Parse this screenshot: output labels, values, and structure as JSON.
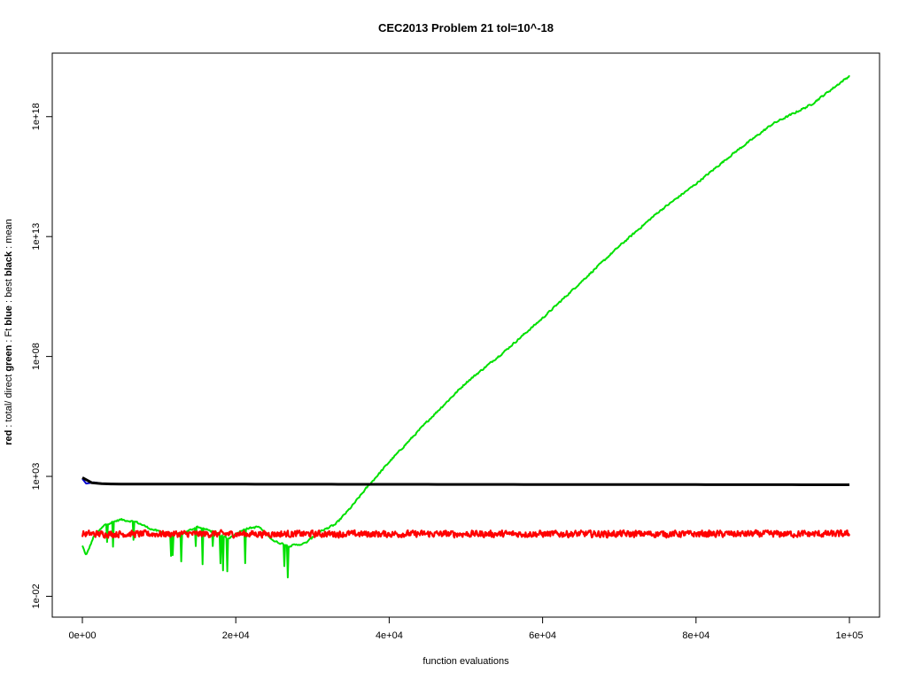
{
  "chart_data": {
    "type": "line",
    "title": "CEC2013 Problem  21  tol=10^-18",
    "xlabel": "function evaluations",
    "ylabel_parts": [
      {
        "text": "red",
        "bold": true
      },
      {
        "text": " : total/ direct ",
        "bold": false
      },
      {
        "text": "green",
        "bold": true
      },
      {
        "text": " : Ft ",
        "bold": false
      },
      {
        "text": "blue",
        "bold": true
      },
      {
        "text": " : best ",
        "bold": false
      },
      {
        "text": "black",
        "bold": true
      },
      {
        "text": " : mean",
        "bold": false
      }
    ],
    "x_scale": "linear",
    "y_scale": "log",
    "xlim": [
      0,
      100000
    ],
    "ylim_log10": [
      -2.5,
      19.8
    ],
    "x_ticks": [
      0,
      20000,
      40000,
      60000,
      80000,
      100000
    ],
    "x_tick_labels": [
      "0e+00",
      "2e+04",
      "4e+04",
      "6e+04",
      "8e+04",
      "1e+05"
    ],
    "y_ticks_log10": [
      -2,
      3,
      8,
      13,
      18
    ],
    "y_tick_labels": [
      "1e-02",
      "1e+03",
      "1e+08",
      "1e+13",
      "1e+18"
    ],
    "grid": false,
    "series": [
      {
        "name": "red",
        "color": "#ff0000",
        "description_points": [
          [
            0,
            0.6
          ],
          [
            20000,
            0.6
          ],
          [
            40000,
            0.6
          ],
          [
            60000,
            0.6
          ],
          [
            80000,
            0.6
          ],
          [
            100000,
            0.6
          ]
        ],
        "noise_log10": 0.18
      },
      {
        "name": "green",
        "color": "#00e000",
        "points": [
          [
            0,
            0.1
          ],
          [
            500,
            -0.3
          ],
          [
            1500,
            0.5
          ],
          [
            3000,
            1.0
          ],
          [
            5000,
            1.2
          ],
          [
            7000,
            1.1
          ],
          [
            9000,
            0.8
          ],
          [
            11000,
            0.6
          ],
          [
            13000,
            0.6
          ],
          [
            15000,
            0.9
          ],
          [
            17000,
            0.7
          ],
          [
            19000,
            0.4
          ],
          [
            21000,
            0.8
          ],
          [
            23000,
            0.9
          ],
          [
            25000,
            0.3
          ],
          [
            27000,
            0.1
          ],
          [
            29000,
            0.2
          ],
          [
            31000,
            0.7
          ],
          [
            33000,
            1.0
          ],
          [
            35000,
            1.7
          ],
          [
            37000,
            2.5
          ],
          [
            40000,
            3.6
          ],
          [
            45000,
            5.3
          ],
          [
            50000,
            6.9
          ],
          [
            55000,
            8.2
          ],
          [
            60000,
            9.6
          ],
          [
            65000,
            11.1
          ],
          [
            70000,
            12.6
          ],
          [
            75000,
            14.0
          ],
          [
            80000,
            15.2
          ],
          [
            85000,
            16.5
          ],
          [
            90000,
            17.7
          ],
          [
            95000,
            18.5
          ],
          [
            100000,
            19.7
          ]
        ],
        "noise_log10": 0.05
      },
      {
        "name": "blue",
        "color": "#0000cc",
        "points": [
          [
            0,
            2.9
          ],
          [
            500,
            2.7
          ],
          [
            1500,
            2.75
          ],
          [
            2500,
            2.7
          ],
          [
            3500,
            2.68
          ]
        ]
      },
      {
        "name": "black",
        "color": "#000000",
        "points": [
          [
            0,
            2.95
          ],
          [
            800,
            2.75
          ],
          [
            2000,
            2.7
          ],
          [
            4000,
            2.68
          ],
          [
            100000,
            2.65
          ]
        ]
      }
    ]
  }
}
